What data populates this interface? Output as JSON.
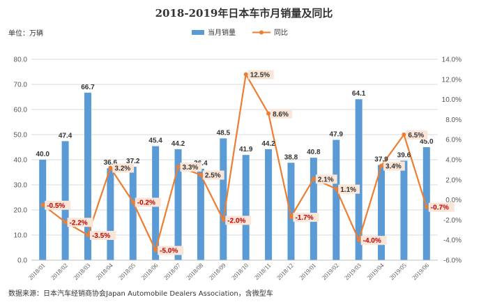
{
  "chart_data": {
    "type": "bar",
    "title": "2018-2019年日本车市月销量及同比",
    "unit_label": "单位：万辆",
    "source": "数据来源：日本汽车经销商协会Japan Automobile Dealers Association，含微型车",
    "categories": [
      "2018/01",
      "2018/02",
      "2018/03",
      "2018/04",
      "2018/05",
      "2018/06",
      "2018/07",
      "2018/08",
      "2018/09",
      "2018/10",
      "2018/11",
      "2018/12",
      "2019/01",
      "2019/02",
      "2019/03",
      "2019/04",
      "2019/05",
      "2019/06"
    ],
    "series": [
      {
        "name": "当月销量",
        "type": "bar",
        "axis": "left",
        "values": [
          40.0,
          47.4,
          66.7,
          36.6,
          37.2,
          45.4,
          44.2,
          36.4,
          48.5,
          41.9,
          44.2,
          38.8,
          40.8,
          47.9,
          64.1,
          37.9,
          39.6,
          45.0
        ],
        "labels": [
          "40.0",
          "47.4",
          "66.7",
          "36.6",
          "37.2",
          "45.4",
          "44.2",
          "36.4",
          "48.5",
          "41.9",
          "44.2",
          "38.8",
          "40.8",
          "47.9",
          "64.1",
          "37.9",
          "39.6",
          "45.0"
        ]
      },
      {
        "name": "同比",
        "type": "line",
        "axis": "right",
        "values": [
          -0.5,
          -2.2,
          -3.5,
          3.2,
          -0.2,
          -5.0,
          3.3,
          2.5,
          -2.0,
          12.5,
          8.6,
          -1.7,
          2.1,
          1.1,
          -4.0,
          3.4,
          6.5,
          -0.7
        ],
        "labels": [
          "-0.5%",
          "-2.2%",
          "-3.5%",
          "3.2%",
          "-0.2%",
          "-5.0%",
          "3.3%",
          "2.5%",
          "-2.0%",
          "12.5%",
          "8.6%",
          "-1.7%",
          "2.1%",
          "1.1%",
          "-4.0%",
          "3.4%",
          "6.5%",
          "-0.7%"
        ]
      }
    ],
    "y_left": {
      "min": 0,
      "max": 80,
      "step": 10,
      "ticks": [
        "0.0",
        "10.0",
        "20.0",
        "30.0",
        "40.0",
        "50.0",
        "60.0",
        "70.0",
        "80.0"
      ]
    },
    "y_right": {
      "min": -6,
      "max": 14,
      "step": 2,
      "ticks": [
        "-6.0%",
        "-4.0%",
        "-2.0%",
        "0.0%",
        "2.0%",
        "4.0%",
        "6.0%",
        "8.0%",
        "10.0%",
        "12.0%",
        "14.0%"
      ]
    },
    "grid": true,
    "legend_position": "top-center",
    "colors": {
      "bar": "#5b9bd5",
      "line": "#ed7d31",
      "negative_label": "#c00000",
      "label_bg": "#fbe5d6",
      "grid": "#d9d9d9"
    }
  }
}
